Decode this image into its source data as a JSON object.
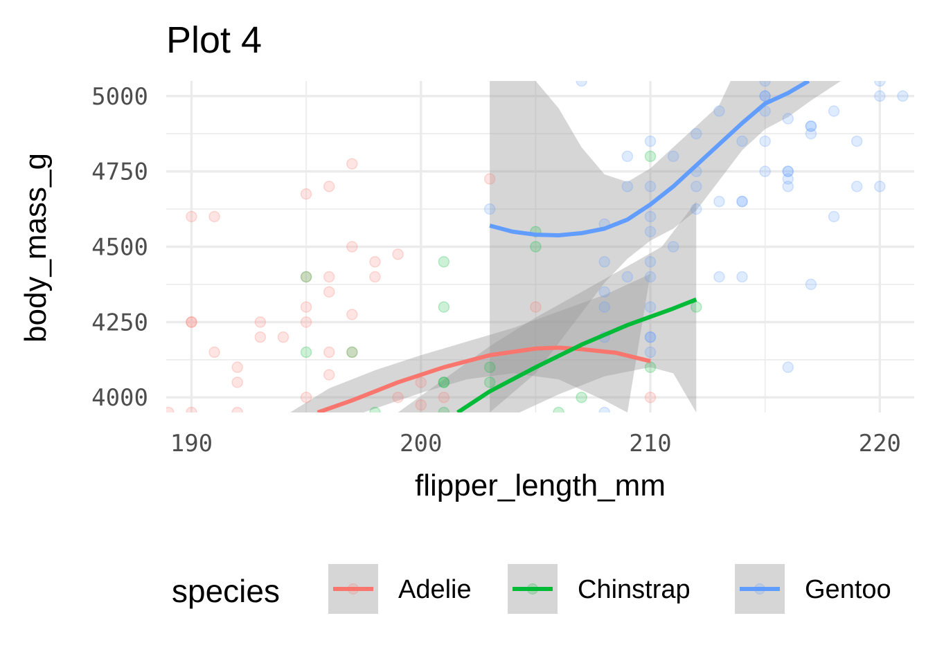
{
  "chart_data": {
    "type": "scatter",
    "title": "Plot 4",
    "xlabel": "flipper_length_mm",
    "ylabel": "body_mass_g",
    "xlim": [
      188.9,
      221.5
    ],
    "ylim": [
      3950,
      5050
    ],
    "x_ticks": [
      190,
      200,
      210,
      220
    ],
    "y_ticks": [
      4000,
      4250,
      4500,
      4750,
      5000
    ],
    "x_tick_labels": [
      "190",
      "200",
      "210",
      "220"
    ],
    "y_tick_labels": [
      "4000",
      "4250",
      "4500",
      "4750",
      "5000"
    ],
    "grid": true,
    "legend": {
      "title": "species",
      "position": "bottom"
    },
    "series": [
      {
        "name": "Adelie",
        "color": "#F8766D",
        "points": [
          [
            189,
            3950
          ],
          [
            190,
            3950
          ],
          [
            190,
            4250
          ],
          [
            190,
            4250
          ],
          [
            190,
            4600
          ],
          [
            191,
            4600
          ],
          [
            191,
            4150
          ],
          [
            192,
            4100
          ],
          [
            192,
            4050
          ],
          [
            192,
            3950
          ],
          [
            193,
            4250
          ],
          [
            193,
            4200
          ],
          [
            194,
            4200
          ],
          [
            195,
            4675
          ],
          [
            195,
            4400
          ],
          [
            195,
            4300
          ],
          [
            195,
            4250
          ],
          [
            195,
            4000
          ],
          [
            196,
            4700
          ],
          [
            196,
            4400
          ],
          [
            196,
            4350
          ],
          [
            196,
            4150
          ],
          [
            196,
            4075
          ],
          [
            197,
            4775
          ],
          [
            197,
            4500
          ],
          [
            197,
            4275
          ],
          [
            197,
            4150
          ],
          [
            198,
            4450
          ],
          [
            198,
            4400
          ],
          [
            199,
            4475
          ],
          [
            199,
            4000
          ],
          [
            200,
            4050
          ],
          [
            200,
            3975
          ],
          [
            201,
            4000
          ],
          [
            203,
            4725
          ],
          [
            205,
            4300
          ],
          [
            210,
            4000
          ]
        ],
        "smooth": [
          [
            195.5,
            3950
          ],
          [
            197,
            3990
          ],
          [
            199,
            4050
          ],
          [
            201,
            4100
          ],
          [
            203,
            4140
          ],
          [
            205,
            4162
          ],
          [
            206,
            4165
          ],
          [
            207,
            4160
          ],
          [
            208.5,
            4148
          ],
          [
            210,
            4120
          ]
        ],
        "ribbon_upper": [
          [
            194.3,
            3950
          ],
          [
            196,
            4030
          ],
          [
            198,
            4090
          ],
          [
            200,
            4140
          ],
          [
            202,
            4185
          ],
          [
            204,
            4230
          ],
          [
            206,
            4285
          ],
          [
            208,
            4340
          ],
          [
            210,
            4410
          ]
        ],
        "ribbon_lower": [
          [
            197.5,
            3950
          ],
          [
            200,
            4015
          ],
          [
            202,
            4060
          ],
          [
            204,
            4080
          ],
          [
            206,
            4060
          ],
          [
            208,
            3990
          ],
          [
            209,
            3950
          ]
        ]
      },
      {
        "name": "Chinstrap",
        "color": "#00BA38",
        "points": [
          [
            195,
            4400
          ],
          [
            195,
            4150
          ],
          [
            197,
            4150
          ],
          [
            198,
            3950
          ],
          [
            201,
            4450
          ],
          [
            201,
            4300
          ],
          [
            201,
            4050
          ],
          [
            201,
            4050
          ],
          [
            201,
            3950
          ],
          [
            203,
            4100
          ],
          [
            203,
            4050
          ],
          [
            205,
            4550
          ],
          [
            205,
            4500
          ],
          [
            206,
            3950
          ],
          [
            207,
            4000
          ],
          [
            210,
            4800
          ],
          [
            210,
            4100
          ],
          [
            212,
            4300
          ]
        ],
        "smooth": [
          [
            201.6,
            3950
          ],
          [
            203,
            4020
          ],
          [
            205,
            4100
          ],
          [
            207,
            4175
          ],
          [
            209,
            4240
          ],
          [
            211,
            4295
          ],
          [
            212,
            4325
          ]
        ],
        "ribbon_upper": [
          [
            199,
            3950
          ],
          [
            201,
            4060
          ],
          [
            203,
            4170
          ],
          [
            205,
            4265
          ],
          [
            207,
            4350
          ],
          [
            209,
            4435
          ],
          [
            210.5,
            4500
          ],
          [
            212,
            4650
          ]
        ],
        "ribbon_lower": [
          [
            204.3,
            3950
          ],
          [
            206,
            4010
          ],
          [
            208,
            4070
          ],
          [
            210,
            4100
          ],
          [
            211,
            4080
          ],
          [
            212,
            3950
          ]
        ]
      },
      {
        "name": "Gentoo",
        "color": "#619CFF",
        "points": [
          [
            203,
            4625
          ],
          [
            207,
            5050
          ],
          [
            208,
            4575
          ],
          [
            208,
            4450
          ],
          [
            208,
            4350
          ],
          [
            208,
            4300
          ],
          [
            208,
            4200
          ],
          [
            208,
            3950
          ],
          [
            209,
            4800
          ],
          [
            209,
            4700
          ],
          [
            209,
            4400
          ],
          [
            210,
            4850
          ],
          [
            210,
            4700
          ],
          [
            210,
            4600
          ],
          [
            210,
            4550
          ],
          [
            210,
            4450
          ],
          [
            210,
            4400
          ],
          [
            210,
            4300
          ],
          [
            210,
            4200
          ],
          [
            210,
            4200
          ],
          [
            210,
            4150
          ],
          [
            211,
            4800
          ],
          [
            211,
            4500
          ],
          [
            212,
            4875
          ],
          [
            212,
            4750
          ],
          [
            212,
            4700
          ],
          [
            212,
            4625
          ],
          [
            213,
            4950
          ],
          [
            213,
            4650
          ],
          [
            213,
            4400
          ],
          [
            214,
            4850
          ],
          [
            214,
            4650
          ],
          [
            214,
            4650
          ],
          [
            214,
            4400
          ],
          [
            215,
            5050
          ],
          [
            215,
            5000
          ],
          [
            215,
            5000
          ],
          [
            215,
            4950
          ],
          [
            215,
            4850
          ],
          [
            215,
            4750
          ],
          [
            216,
            4925
          ],
          [
            216,
            4750
          ],
          [
            216,
            4750
          ],
          [
            216,
            4725
          ],
          [
            216,
            4700
          ],
          [
            216,
            4100
          ],
          [
            217,
            4900
          ],
          [
            217,
            4900
          ],
          [
            217,
            4875
          ],
          [
            217,
            4375
          ],
          [
            218,
            4950
          ],
          [
            218,
            4600
          ],
          [
            219,
            4850
          ],
          [
            219,
            4700
          ],
          [
            220,
            5050
          ],
          [
            220,
            5000
          ],
          [
            220,
            4700
          ],
          [
            221,
            5000
          ]
        ],
        "smooth": [
          [
            203,
            4570
          ],
          [
            204,
            4550
          ],
          [
            205,
            4540
          ],
          [
            206,
            4538
          ],
          [
            207,
            4545
          ],
          [
            208,
            4560
          ],
          [
            209,
            4590
          ],
          [
            210,
            4640
          ],
          [
            211,
            4700
          ],
          [
            212,
            4770
          ],
          [
            213,
            4840
          ],
          [
            214,
            4910
          ],
          [
            215,
            4975
          ],
          [
            216,
            5010
          ],
          [
            216.9,
            5050
          ]
        ],
        "ribbon_upper": [
          [
            203,
            5050
          ],
          [
            205,
            5050
          ],
          [
            206,
            4960
          ],
          [
            207,
            4830
          ],
          [
            208,
            4740
          ],
          [
            209,
            4715
          ],
          [
            210,
            4760
          ],
          [
            211,
            4830
          ],
          [
            212,
            4900
          ],
          [
            213,
            4970
          ],
          [
            213.5,
            5050
          ]
        ],
        "ribbon_lower": [
          [
            203,
            3950
          ],
          [
            205,
            4080
          ],
          [
            206,
            4180
          ],
          [
            207,
            4280
          ],
          [
            208,
            4380
          ],
          [
            209,
            4460
          ],
          [
            210,
            4520
          ],
          [
            211,
            4560
          ],
          [
            212,
            4620
          ],
          [
            213,
            4720
          ],
          [
            214,
            4820
          ],
          [
            215,
            4890
          ],
          [
            216,
            4930
          ],
          [
            217,
            4985
          ],
          [
            218.3,
            5050
          ]
        ]
      }
    ]
  }
}
